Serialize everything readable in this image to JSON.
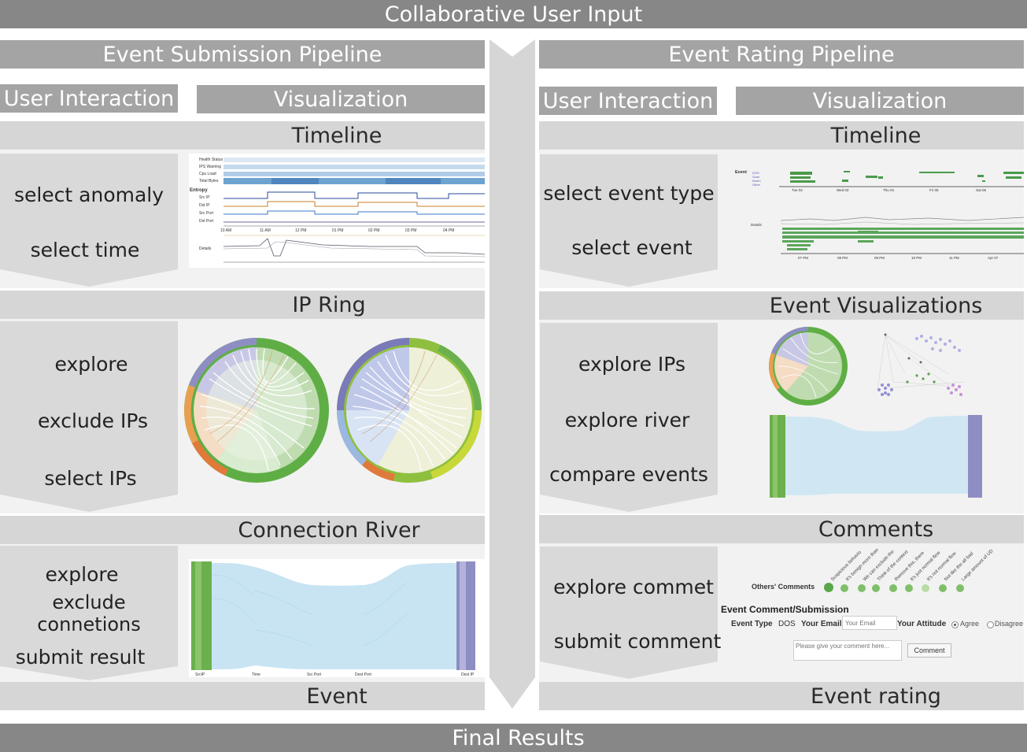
{
  "header": {
    "title": "Collaborative User Input"
  },
  "footer": {
    "title": "Final Results"
  },
  "left": {
    "title": "Event Submission Pipeline",
    "col_ui": "User Interaction",
    "col_vis": "Visualization",
    "sections": {
      "timeline": {
        "title": "Timeline",
        "steps": [
          "select anomaly",
          "select time"
        ]
      },
      "ipring": {
        "title": "IP Ring",
        "steps": [
          "explore",
          "exclude IPs",
          "select IPs"
        ]
      },
      "river": {
        "title": "Connection River",
        "steps": [
          "explore",
          "exclude connetions",
          "submit result"
        ]
      },
      "event": {
        "title": "Event"
      }
    },
    "timeline_labels": {
      "rows": [
        "Health Status",
        "IPS Warning",
        "Cpu Load",
        "Total Bytes",
        "Entropy",
        "Src IP",
        "Dst IP",
        "Src Port",
        "Dst Port"
      ],
      "details": "Details",
      "ticks": [
        "10 AM",
        "11 AM",
        "12 PM",
        "01 PM",
        "02 PM",
        "03 PM",
        "04 PM"
      ]
    },
    "river_labels": {
      "axes": [
        "SrcIP",
        "Time",
        "Src Port",
        "Dest Port",
        "Dest IP"
      ]
    }
  },
  "right": {
    "title": "Event Rating Pipeline",
    "col_ui": "User Interaction",
    "col_vis": "Visualization",
    "sections": {
      "timeline": {
        "title": "Timeline",
        "steps": [
          "select event type",
          "select event"
        ]
      },
      "eventvis": {
        "title": "Event Visualizations",
        "steps": [
          "explore IPs",
          "explore river",
          "compare events"
        ]
      },
      "comments": {
        "title": "Comments",
        "steps": [
          "explore commet",
          "submit comment"
        ]
      },
      "rating": {
        "title": "Event rating"
      }
    },
    "timeline_labels": {
      "event": "Event",
      "legend": [
        "DOS",
        "Scan",
        "Worm",
        "Other"
      ],
      "ticks": [
        "Tue 02",
        "Wed 03",
        "Thu 04",
        "Fri 05",
        "Sat 06"
      ],
      "details": "Details",
      "detail_ticks": [
        "07 PM",
        "08 PM",
        "09 PM",
        "10 PM",
        "11 PM",
        "Apr 07"
      ]
    },
    "comment_form": {
      "others_label": "Others' Comments",
      "comment_snippets": [
        "Suspicious behavio",
        "It's benign more than",
        "We can exclude the",
        "Think of the context",
        "Remove this, there",
        "It's just normal flow",
        "It's not normal flow",
        "Not like the all bad",
        "Large amount of UD"
      ],
      "form_title": "Event Comment/Submission",
      "event_type_label": "Event Type",
      "event_type_value": "DOS",
      "email_label": "Your Email",
      "email_placeholder": "Your Email",
      "attitude_label": "Your Attitude",
      "agree": "Agree",
      "disagree": "Disagree",
      "comment_placeholder": "Please give your comment here...",
      "comment_button": "Comment"
    }
  },
  "colors": {
    "dark_bar": "#878787",
    "mid_bar": "#a4a4a4",
    "light_bar": "#d6d6d6",
    "panel": "#f2f2f2",
    "green": "#6ab04c",
    "purple": "#8e8ec4",
    "blue_line": "#2a4a9a",
    "orange_line": "#c4802a",
    "river": "#bfe0f2"
  }
}
